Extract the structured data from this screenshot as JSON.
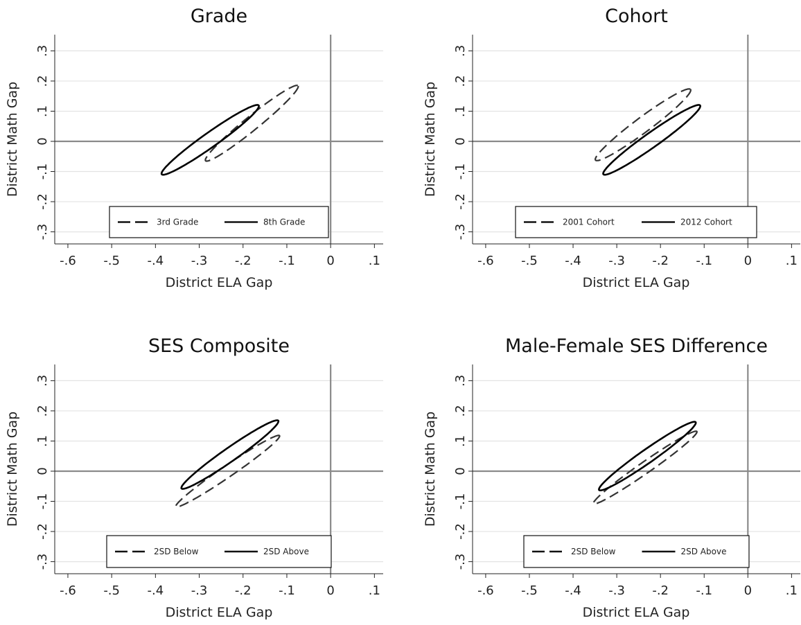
{
  "chart_data": [
    {
      "type": "line",
      "title": "Grade",
      "xlabel": "District ELA Gap",
      "ylabel": "District Math Gap",
      "xlim": [
        -0.63,
        0.12
      ],
      "ylim": [
        -0.34,
        0.34
      ],
      "xticks": [
        -0.6,
        -0.5,
        -0.4,
        -0.3,
        -0.2,
        -0.1,
        0,
        0.1
      ],
      "xtick_labels": [
        "-.6",
        "-.5",
        "-.4",
        "-.3",
        "-.2",
        "-.1",
        "0",
        ".1"
      ],
      "yticks": [
        -0.3,
        -0.2,
        -0.1,
        0,
        0.1,
        0.2,
        0.3
      ],
      "ytick_labels": [
        "-.3",
        "-.2",
        "-.1",
        "0",
        ".1",
        ".2",
        ".3"
      ],
      "grid": true,
      "reference_lines": {
        "x": 0,
        "y": 0
      },
      "legend_position": "bottom",
      "series": [
        {
          "name": "3rd Grade",
          "style": "dashed",
          "ellipse": {
            "center": [
              -0.18,
              0.06
            ],
            "axis1": [
              0.105,
              0.125
            ],
            "axis2": [
              -0.015,
              0.012
            ]
          }
        },
        {
          "name": "8th Grade",
          "style": "solid",
          "ellipse": {
            "center": [
              -0.275,
              0.005
            ],
            "axis1": [
              0.11,
              0.115
            ],
            "axis2": [
              -0.016,
              0.013
            ]
          }
        }
      ]
    },
    {
      "type": "line",
      "title": "Cohort",
      "xlabel": "District ELA Gap",
      "ylabel": "District Math Gap",
      "xlim": [
        -0.63,
        0.12
      ],
      "ylim": [
        -0.34,
        0.34
      ],
      "xticks": [
        -0.6,
        -0.5,
        -0.4,
        -0.3,
        -0.2,
        -0.1,
        0,
        0.1
      ],
      "xtick_labels": [
        "-.6",
        "-.5",
        "-.4",
        "-.3",
        "-.2",
        "-.1",
        "0",
        ".1"
      ],
      "yticks": [
        -0.3,
        -0.2,
        -0.1,
        0,
        0.1,
        0.2,
        0.3
      ],
      "ytick_labels": [
        "-.3",
        "-.2",
        "-.1",
        "0",
        ".1",
        ".2",
        ".3"
      ],
      "grid": true,
      "reference_lines": {
        "x": 0,
        "y": 0
      },
      "legend_position": "bottom",
      "series": [
        {
          "name": "2001 Cohort",
          "style": "dashed",
          "ellipse": {
            "center": [
              -0.24,
              0.055
            ],
            "axis1": [
              0.108,
              0.118
            ],
            "axis2": [
              -0.016,
              0.014
            ]
          }
        },
        {
          "name": "2012 Cohort",
          "style": "solid",
          "ellipse": {
            "center": [
              -0.22,
              0.005
            ],
            "axis1": [
              0.11,
              0.115
            ],
            "axis2": [
              -0.016,
              0.013
            ]
          }
        }
      ]
    },
    {
      "type": "line",
      "title": "SES Composite",
      "xlabel": "District ELA Gap",
      "ylabel": "District Math Gap",
      "xlim": [
        -0.63,
        0.12
      ],
      "ylim": [
        -0.34,
        0.34
      ],
      "xticks": [
        -0.6,
        -0.5,
        -0.4,
        -0.3,
        -0.2,
        -0.1,
        0,
        0.1
      ],
      "xtick_labels": [
        "-.6",
        "-.5",
        "-.4",
        "-.3",
        "-.2",
        "-.1",
        "0",
        ".1"
      ],
      "yticks": [
        -0.3,
        -0.2,
        -0.1,
        0,
        0.1,
        0.2,
        0.3
      ],
      "ytick_labels": [
        "-.3",
        "-.2",
        "-.1",
        "0",
        ".1",
        ".2",
        ".3"
      ],
      "grid": true,
      "reference_lines": {
        "x": 0,
        "y": 0
      },
      "legend_position": "bottom",
      "series": [
        {
          "name": "2SD Below",
          "style": "dashed",
          "ellipse": {
            "center": [
              -0.235,
              0.0
            ],
            "axis1": [
              0.118,
              0.118
            ],
            "axis2": [
              -0.011,
              0.012
            ]
          }
        },
        {
          "name": "2SD Above",
          "style": "solid",
          "ellipse": {
            "center": [
              -0.23,
              0.055
            ],
            "axis1": [
              0.11,
              0.113
            ],
            "axis2": [
              -0.014,
              0.013
            ]
          }
        }
      ]
    },
    {
      "type": "line",
      "title": "Male-Female SES Difference",
      "xlabel": "District ELA Gap",
      "ylabel": "District Math Gap",
      "xlim": [
        -0.63,
        0.12
      ],
      "ylim": [
        -0.34,
        0.34
      ],
      "xticks": [
        -0.6,
        -0.5,
        -0.4,
        -0.3,
        -0.2,
        -0.1,
        0,
        0.1
      ],
      "xtick_labels": [
        "-.6",
        "-.5",
        "-.4",
        "-.3",
        "-.2",
        "-.1",
        "0",
        ".1"
      ],
      "yticks": [
        -0.3,
        -0.2,
        -0.1,
        0,
        0.1,
        0.2,
        0.3
      ],
      "ytick_labels": [
        "-.3",
        "-.2",
        "-.1",
        "0",
        ".1",
        ".2",
        ".3"
      ],
      "grid": true,
      "reference_lines": {
        "x": 0,
        "y": 0
      },
      "legend_position": "bottom",
      "series": [
        {
          "name": "2SD Below",
          "style": "dashed",
          "ellipse": {
            "center": [
              -0.235,
              0.012
            ],
            "axis1": [
              0.118,
              0.12
            ],
            "axis2": [
              -0.011,
              0.012
            ]
          }
        },
        {
          "name": "2SD Above",
          "style": "solid",
          "ellipse": {
            "center": [
              -0.23,
              0.05
            ],
            "axis1": [
              0.11,
              0.113
            ],
            "axis2": [
              -0.014,
              0.013
            ]
          }
        }
      ]
    }
  ]
}
